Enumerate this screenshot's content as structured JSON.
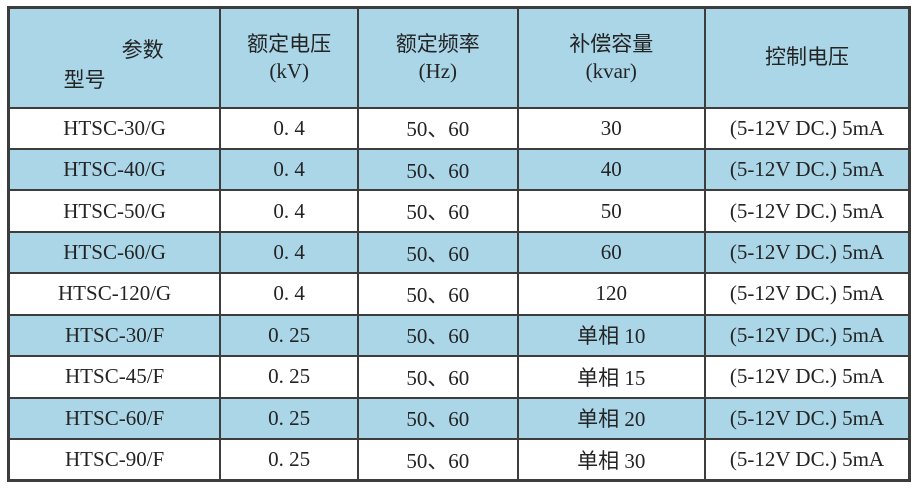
{
  "table": {
    "header": {
      "corner": {
        "top_right": "参数",
        "bottom_left": "型号"
      },
      "columns": [
        {
          "title": "额定电压",
          "unit": "(kV)"
        },
        {
          "title": "额定频率",
          "unit": "(Hz)"
        },
        {
          "title": "补偿容量",
          "unit": "(kvar)"
        },
        {
          "title": "控制电压",
          "unit": ""
        }
      ]
    },
    "rows": [
      {
        "model": "HTSC-30/G",
        "voltage": "0. 4",
        "frequency": "50、60",
        "capacity": "30",
        "control": "(5-12V DC.) 5mA",
        "highlight": false
      },
      {
        "model": "HTSC-40/G",
        "voltage": "0. 4",
        "frequency": "50、60",
        "capacity": "40",
        "control": "(5-12V DC.) 5mA",
        "highlight": true
      },
      {
        "model": "HTSC-50/G",
        "voltage": "0. 4",
        "frequency": "50、60",
        "capacity": "50",
        "control": "(5-12V DC.) 5mA",
        "highlight": false
      },
      {
        "model": "HTSC-60/G",
        "voltage": "0. 4",
        "frequency": "50、60",
        "capacity": "60",
        "control": "(5-12V DC.) 5mA",
        "highlight": true
      },
      {
        "model": "HTSC-120/G",
        "voltage": "0. 4",
        "frequency": "50、60",
        "capacity": "120",
        "control": "(5-12V DC.) 5mA",
        "highlight": false
      },
      {
        "model": "HTSC-30/F",
        "voltage": "0. 25",
        "frequency": "50、60",
        "capacity": "单相 10",
        "control": "(5-12V DC.) 5mA",
        "highlight": true
      },
      {
        "model": "HTSC-45/F",
        "voltage": "0. 25",
        "frequency": "50、60",
        "capacity": "单相 15",
        "control": "(5-12V DC.) 5mA",
        "highlight": false
      },
      {
        "model": "HTSC-60/F",
        "voltage": "0. 25",
        "frequency": "50、60",
        "capacity": "单相 20",
        "control": "(5-12V DC.) 5mA",
        "highlight": true
      },
      {
        "model": "HTSC-90/F",
        "voltage": "0. 25",
        "frequency": "50、60",
        "capacity": "单相 30",
        "control": "(5-12V DC.) 5mA",
        "highlight": false
      }
    ]
  },
  "colors": {
    "header_bg": "#aad6e8",
    "row_alt_bg": "#aad6e8",
    "border": "#3d3d3d",
    "text": "#242424"
  }
}
